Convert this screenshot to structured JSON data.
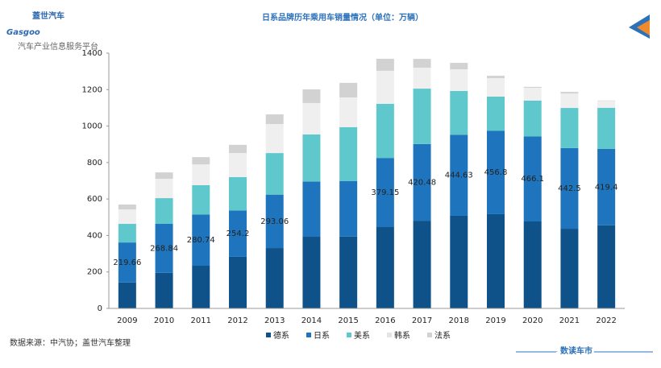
{
  "logo": {
    "name": "蓋世汽车",
    "brand": "Gasgoo",
    "tagline": "汽车产业信息服务平台"
  },
  "footer": {
    "source": "数据来源：中汽协；盖世汽车整理",
    "brand": "数读车市"
  },
  "chart_data": {
    "type": "stacked-bar",
    "title": "日系品牌历年乘用车销量情况（单位：万辆）",
    "categories": [
      "2009",
      "2010",
      "2011",
      "2012",
      "2013",
      "2014",
      "2015",
      "2016",
      "2017",
      "2018",
      "2019",
      "2020",
      "2021",
      "2022"
    ],
    "series": [
      {
        "name": "德系",
        "color": "#0e5289",
        "values": [
          142,
          195,
          234,
          283,
          331,
          393,
          394,
          446,
          481,
          508,
          517,
          477,
          437,
          456
        ]
      },
      {
        "name": "日系",
        "color": "#1f75bd",
        "values": [
          219.66,
          268.84,
          280.74,
          254.2,
          293.06,
          302.4,
          305,
          379.15,
          420.48,
          444.63,
          456.8,
          466.1,
          442.5,
          419.4
        ],
        "value_labels": [
          "219.66",
          "268.84",
          "280.74",
          "254.2",
          "293.06",
          null,
          null,
          "379.15",
          "420.48",
          "444.63",
          "456.8",
          "466.1",
          "442.5",
          "419.4"
        ]
      },
      {
        "name": "美系",
        "color": "#5ec8cc",
        "values": [
          102,
          141,
          161,
          183,
          228,
          259,
          295,
          297,
          304,
          240,
          188,
          197,
          220,
          225
        ]
      },
      {
        "name": "韩系",
        "color": "#efefef",
        "values": [
          79,
          106,
          114,
          132,
          159,
          172,
          163,
          181,
          115,
          119,
          101,
          70,
          79,
          38
        ]
      },
      {
        "name": "法系",
        "color": "#d2d2d2",
        "values": [
          27,
          35,
          40,
          45,
          53,
          75,
          80,
          66,
          48,
          35,
          13,
          5,
          9,
          2
        ]
      }
    ],
    "ylim": [
      0,
      1400
    ],
    "yticks": [
      0,
      200,
      400,
      600,
      800,
      1000,
      1200,
      1400
    ],
    "grid": false,
    "legend": "bottom"
  }
}
